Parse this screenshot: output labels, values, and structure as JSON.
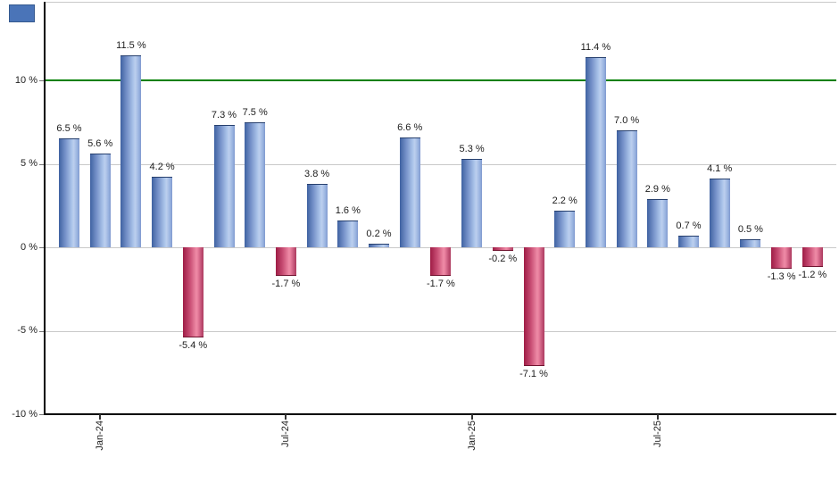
{
  "legend": {
    "swatch_color": "#4a74b8"
  },
  "chart_data": {
    "type": "bar",
    "values": [
      6.5,
      5.6,
      11.5,
      4.2,
      -5.4,
      7.3,
      7.5,
      -1.7,
      3.8,
      1.6,
      0.2,
      6.6,
      -1.7,
      5.3,
      -0.2,
      -7.1,
      2.2,
      11.4,
      7.0,
      2.9,
      0.7,
      4.1,
      0.5,
      -1.3,
      -1.2
    ],
    "bar_labels": [
      "6.5 %",
      "5.6 %",
      "11.5 %",
      "4.2 %",
      "-5.4 %",
      "7.3 %",
      "7.5 %",
      "-1.7 %",
      "3.8 %",
      "1.6 %",
      "0.2 %",
      "6.6 %",
      "-1.7 %",
      "5.3 %",
      "-0.2 %",
      "-7.1 %",
      "2.2 %",
      "11.4 %",
      "7.0 %",
      "2.9 %",
      "0.7 %",
      "4.1 %",
      "0.5 %",
      "-1.3 %",
      "-1.2 %"
    ],
    "x_ticks": [
      {
        "label": "Jan-24",
        "bar_index": 1
      },
      {
        "label": "Jul-24",
        "bar_index": 7
      },
      {
        "label": "Jan-25",
        "bar_index": 13
      },
      {
        "label": "Jul-25",
        "bar_index": 19
      }
    ],
    "y_ticks": [
      {
        "label": "10 %",
        "value": 10
      },
      {
        "label": "5 %",
        "value": 5
      },
      {
        "label": "0 %",
        "value": 0
      },
      {
        "label": "-5 %",
        "value": -5
      },
      {
        "label": "-10 %",
        "value": -10
      }
    ],
    "ylim": [
      -10,
      14.7
    ],
    "grid": "horizontal",
    "reference_line": {
      "value": 10,
      "color": "#008000"
    },
    "colors": {
      "positive_bar": "#4a74b8",
      "negative_bar": "#c73a62",
      "gridline": "#c9c9c9",
      "axis": "#000000",
      "label_text": "#1c1c1c"
    }
  }
}
